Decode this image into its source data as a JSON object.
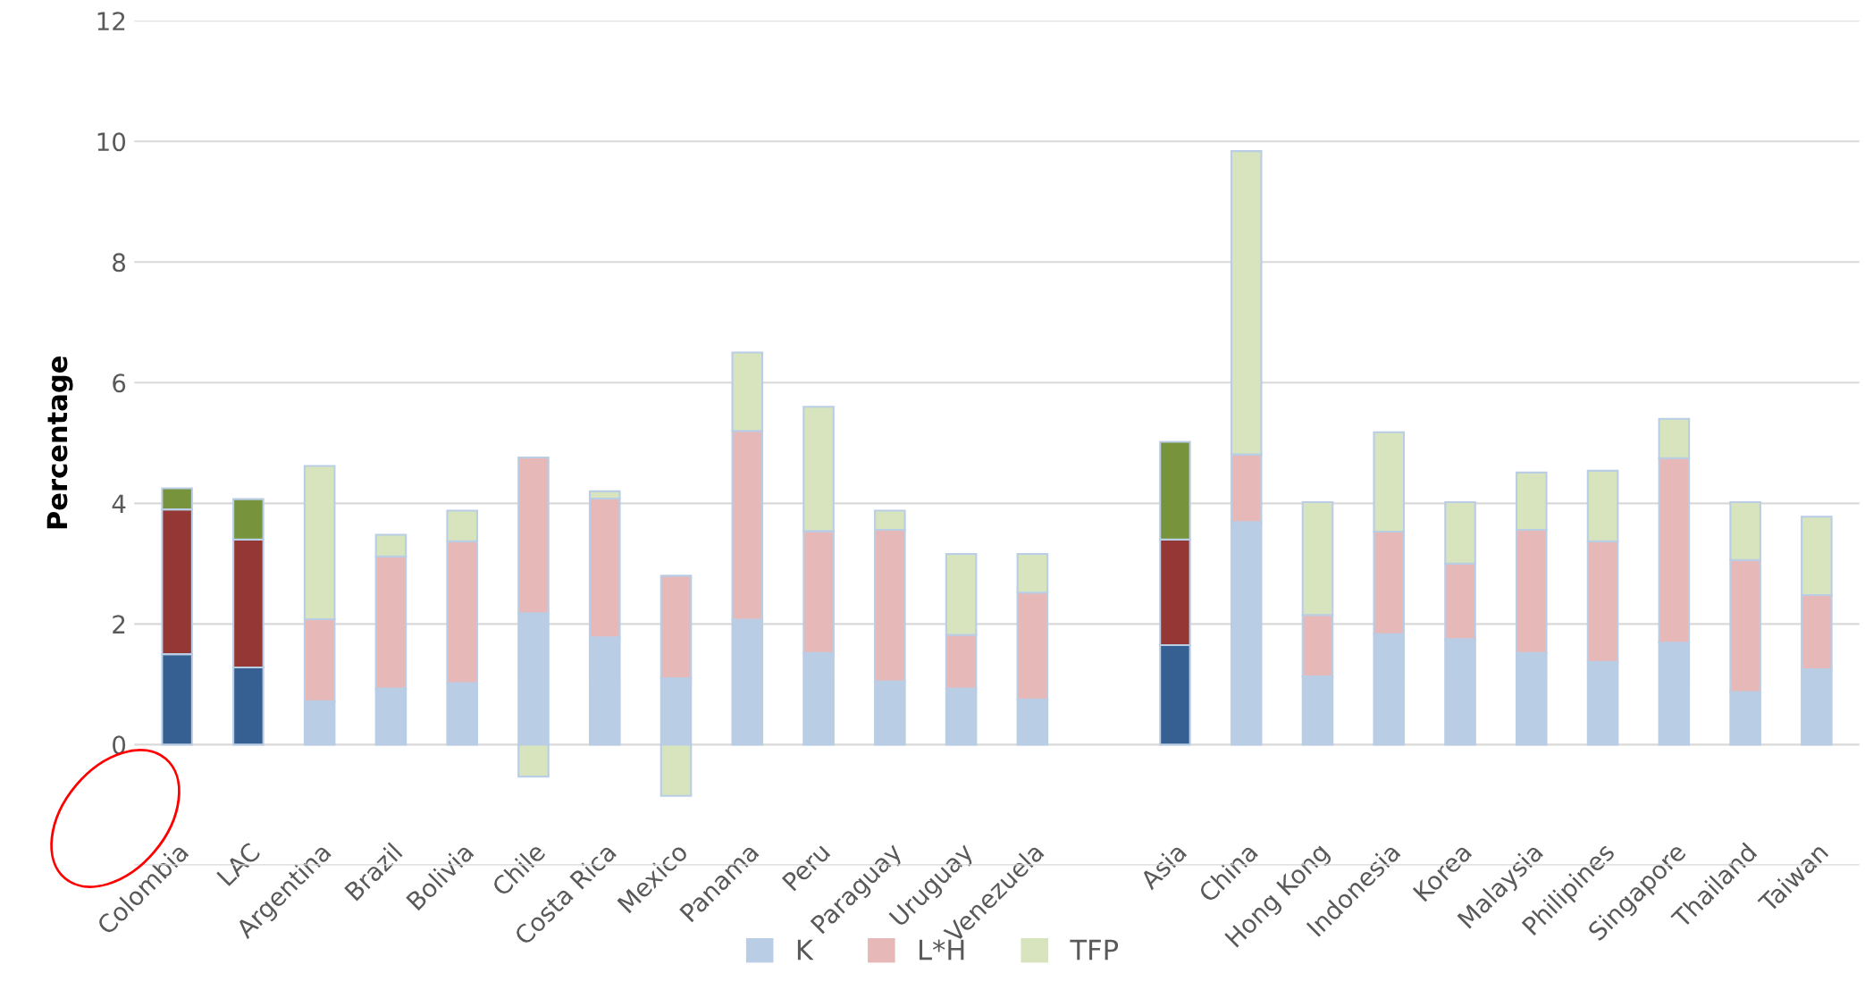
{
  "chart_data": {
    "type": "bar",
    "stacked": true,
    "ylabel": "Percentage",
    "ylim": [
      -2,
      12
    ],
    "yticks": [
      {
        "value": -2,
        "label": null
      },
      0,
      2,
      4,
      6,
      8,
      10,
      12
    ],
    "grid": "y",
    "legend": "bottom",
    "categories": [
      "Colombia",
      "LAC",
      "Argentina",
      "Brazil",
      "Bolivia",
      "Chile",
      "Costa Rica",
      "Mexico",
      "Panama",
      "Peru",
      "Paraguay",
      "Uruguay",
      "Venezuela",
      null,
      "Asia",
      "China",
      "Hong Kong",
      "Indonesia",
      "Korea",
      "Malaysia",
      "Philipines",
      "Singapore",
      "Thailand",
      "Taiwan"
    ],
    "series": [
      {
        "name": "K",
        "color": "#b9cde5",
        "colors": [
          "#376092",
          "#376092",
          "#b9cde5",
          "#b9cde5",
          "#b9cde5",
          "#b9cde5",
          "#b9cde5",
          "#b9cde5",
          "#b9cde5",
          "#b9cde5",
          "#b9cde5",
          "#b9cde5",
          "#b9cde5",
          "#b9cde5",
          "#376092",
          "#b9cde5",
          "#b9cde5",
          "#b9cde5",
          "#b9cde5",
          "#b9cde5",
          "#b9cde5",
          "#b9cde5",
          "#b9cde5",
          "#b9cde5"
        ],
        "values": [
          1.5,
          1.28,
          0.72,
          0.93,
          1.02,
          2.18,
          1.78,
          1.1,
          2.07,
          1.52,
          1.05,
          0.93,
          0.75,
          null,
          1.65,
          3.69,
          1.13,
          1.83,
          1.75,
          1.52,
          1.37,
          1.69,
          0.87,
          1.25
        ]
      },
      {
        "name": "L*H",
        "color": "#e6b9b8",
        "colors": [
          "#953735",
          "#953735",
          "#e6b9b8",
          "#e6b9b8",
          "#e6b9b8",
          "#e6b9b8",
          "#e6b9b8",
          "#e6b9b8",
          "#e6b9b8",
          "#e6b9b8",
          "#e6b9b8",
          "#e6b9b8",
          "#e6b9b8",
          "#e6b9b8",
          "#953735",
          "#e6b9b8",
          "#e6b9b8",
          "#e6b9b8",
          "#e6b9b8",
          "#e6b9b8",
          "#e6b9b8",
          "#e6b9b8",
          "#e6b9b8",
          "#e6b9b8"
        ],
        "values": [
          2.4,
          2.12,
          1.36,
          2.19,
          2.35,
          2.58,
          2.3,
          1.7,
          3.13,
          2.02,
          2.51,
          0.89,
          1.77,
          null,
          1.75,
          1.12,
          1.02,
          1.7,
          1.25,
          2.04,
          2.0,
          3.06,
          2.19,
          1.23
        ]
      },
      {
        "name": "TFP",
        "color": "#d7e4bd",
        "colors": [
          "#77933c",
          "#77933c",
          "#d7e4bd",
          "#d7e4bd",
          "#d7e4bd",
          "#d7e4bd",
          "#d7e4bd",
          "#d7e4bd",
          "#d7e4bd",
          "#d7e4bd",
          "#d7e4bd",
          "#d7e4bd",
          "#d7e4bd",
          "#d7e4bd",
          "#77933c",
          "#d7e4bd",
          "#d7e4bd",
          "#d7e4bd",
          "#d7e4bd",
          "#d7e4bd",
          "#d7e4bd",
          "#d7e4bd",
          "#d7e4bd",
          "#d7e4bd"
        ],
        "values": [
          0.35,
          0.67,
          2.54,
          0.36,
          0.51,
          -0.53,
          0.12,
          -0.85,
          1.3,
          2.06,
          0.32,
          1.34,
          0.64,
          null,
          1.62,
          5.03,
          1.87,
          1.65,
          1.02,
          0.95,
          1.17,
          0.65,
          0.96,
          1.3
        ]
      }
    ]
  }
}
